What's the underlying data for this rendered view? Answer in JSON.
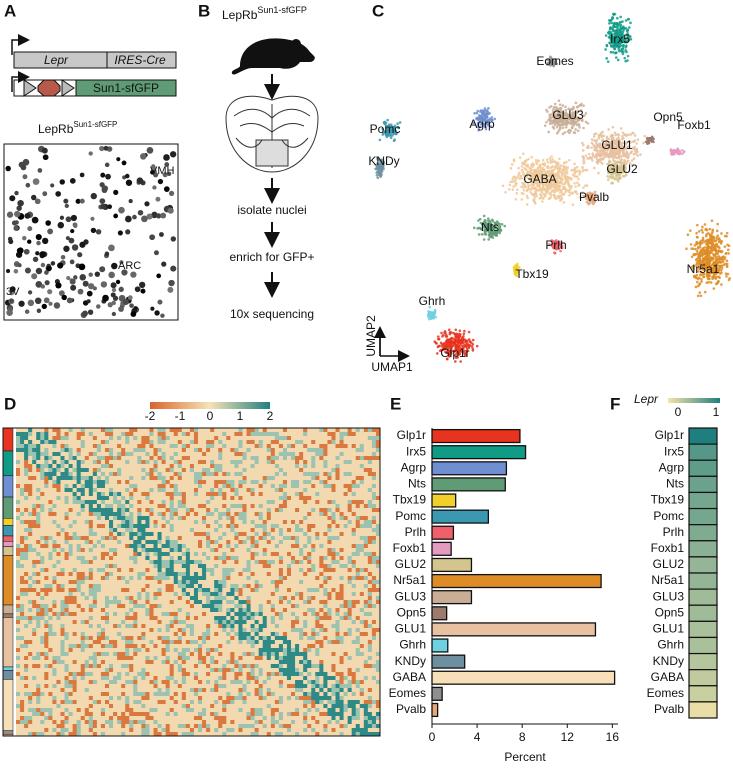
{
  "panel_a": {
    "letter": "A",
    "gene_1": "Lepr",
    "gene_1b": "IRES-Cre",
    "gene_2": "Sun1-sfGFP",
    "image_title": "LepRb",
    "image_title_sup": "Sun1-sfGFP",
    "regions": [
      "VMH",
      "ARC",
      "3V"
    ]
  },
  "panel_b": {
    "letter": "B",
    "title": "LepRb",
    "title_sup": "Sun1-sfGFP",
    "steps": [
      "isolate nuclei",
      "enrich for GFP+",
      "10x sequencing"
    ]
  },
  "panel_c": {
    "letter": "C",
    "clusters": [
      "Irx5",
      "Eomes",
      "Pomc",
      "Agrp",
      "GLU3",
      "KNDy",
      "GLU1",
      "Opn5",
      "Foxb1",
      "GLU2",
      "GABA",
      "Pvalb",
      "Nts",
      "Prlh",
      "Nr5a1",
      "Tbx19",
      "Ghrh",
      "Glp1r"
    ],
    "x_label": "UMAP1",
    "y_label": "UMAP2"
  },
  "panel_d": {
    "letter": "D",
    "colorbar_ticks": [
      -2,
      -1,
      0,
      1,
      2
    ]
  },
  "panel_e": {
    "letter": "E"
  },
  "panel_f": {
    "letter": "F"
  },
  "chart_data": [
    {
      "type": "hbar",
      "x_label": "Percent",
      "categories": [
        "Glp1r",
        "Irx5",
        "Agrp",
        "Nts",
        "Tbx19",
        "Pomc",
        "Prlh",
        "Foxb1",
        "GLU2",
        "Nr5a1",
        "GLU3",
        "Opn5",
        "GLU1",
        "Ghrh",
        "KNDy",
        "GABA",
        "Eomes",
        "Pvalb"
      ],
      "values": [
        7.8,
        8.3,
        6.6,
        6.5,
        2.1,
        5.0,
        1.9,
        1.7,
        3.5,
        15.0,
        3.5,
        1.3,
        14.5,
        1.4,
        2.9,
        16.2,
        0.9,
        0.5
      ],
      "colors": [
        "#e8331f",
        "#0f9b86",
        "#6f8fd0",
        "#5f9c76",
        "#f2d02a",
        "#3a98b0",
        "#f0606a",
        "#e59ac0",
        "#d4c48e",
        "#de8c25",
        "#c9ad94",
        "#9c7a6d",
        "#e8c1a0",
        "#6fd0e0",
        "#6d8fa0",
        "#f7dfb8",
        "#8f8f8f",
        "#e6a77a"
      ],
      "xlim": [
        0,
        16.5
      ],
      "xticks": [
        0,
        4,
        8,
        12,
        16
      ]
    },
    {
      "type": "tile",
      "colorbar_title": "Lepr",
      "categories": [
        "Glp1r",
        "Irx5",
        "Agrp",
        "Nts",
        "Tbx19",
        "Pomc",
        "Prlh",
        "Foxb1",
        "GLU2",
        "Nr5a1",
        "GLU3",
        "Opn5",
        "GLU1",
        "Ghrh",
        "KNDy",
        "GABA",
        "Eomes",
        "Pvalb"
      ],
      "values": [
        1.0,
        0.75,
        0.7,
        0.65,
        0.6,
        0.6,
        0.55,
        0.5,
        0.45,
        0.45,
        0.4,
        0.4,
        0.35,
        0.35,
        0.3,
        0.25,
        0.2,
        0.05
      ],
      "clim": [
        0,
        1
      ],
      "cticks": [
        0,
        1
      ],
      "colormap": [
        "#f5e3a8",
        "#1f7f7f"
      ]
    }
  ]
}
